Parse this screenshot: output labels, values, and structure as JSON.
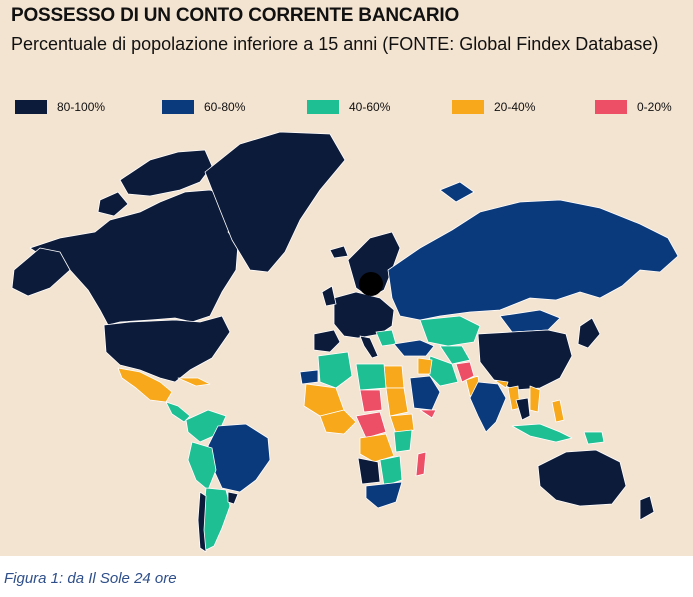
{
  "title": "POSSESSO DI UN CONTO CORRENTE BANCARIO",
  "subtitle": "Percentuale di popolazione inferiore a 15 anni (FONTE: Global Findex Database)",
  "legend": [
    {
      "label": "80-100%",
      "color": "#0d1b3a"
    },
    {
      "label": "60-80%",
      "color": "#0b3a7c"
    },
    {
      "label": "40-60%",
      "color": "#1dbf93"
    },
    {
      "label": "20-40%",
      "color": "#f7a81b"
    },
    {
      "label": "0-20%",
      "color": "#ec4f66"
    }
  ],
  "no_data_color": "#cfcfcf",
  "caption": "Figura 1: da Il Sole 24 ore"
}
